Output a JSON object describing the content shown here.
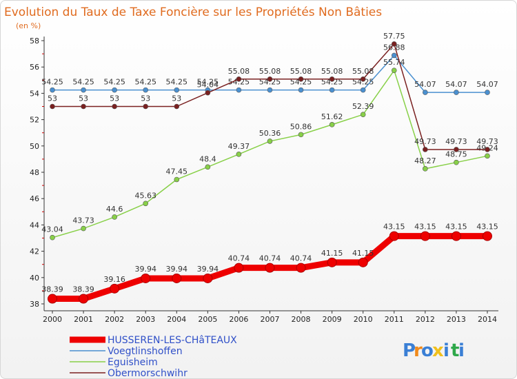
{
  "chart_data": {
    "type": "line",
    "title": "Evolution du Taux de Taxe Foncière sur les Propriétés Non Bâties",
    "ylabel": "(en %)",
    "xlabel": "",
    "ylim": [
      38,
      58
    ],
    "yticks": [
      38,
      40,
      42,
      44,
      46,
      48,
      50,
      52,
      54,
      56,
      58
    ],
    "grid": false,
    "legend_position": "bottom-left",
    "categories": [
      "2000",
      "2001",
      "2002",
      "2003",
      "2004",
      "2005",
      "2006",
      "2007",
      "2008",
      "2009",
      "2010",
      "2011",
      "2012",
      "2013",
      "2014"
    ],
    "series": [
      {
        "name": "HUSSEREN-LES-CHâTEAUX",
        "color": "#ee0000",
        "values": [
          38.39,
          38.39,
          39.16,
          39.94,
          39.94,
          39.94,
          40.74,
          40.74,
          40.74,
          41.15,
          41.15,
          43.15,
          43.15,
          43.15,
          43.15
        ],
        "labels": [
          "38.39",
          "38.39",
          "39.16",
          "39.94",
          "39.94",
          "39.94",
          "40.74",
          "40.74",
          "40.74",
          "41.15",
          "41.15",
          "43.15",
          "43.15",
          "43.15",
          "43.15"
        ]
      },
      {
        "name": "Voegtlinshoffen",
        "color": "#4a90d0",
        "values": [
          54.25,
          54.25,
          54.25,
          54.25,
          54.25,
          54.25,
          54.25,
          54.25,
          54.25,
          54.25,
          54.25,
          56.88,
          54.07,
          54.07,
          54.07
        ],
        "labels": [
          "54.25",
          "54.25",
          "54.25",
          "54.25",
          "54.25",
          "54.25",
          "54.25",
          "54.25",
          "54.25",
          "54.25",
          "54.25",
          "56.88",
          "54.07",
          "54.07",
          "54.07"
        ]
      },
      {
        "name": "Eguisheim",
        "color": "#88d048",
        "values": [
          43.04,
          43.73,
          44.6,
          45.63,
          47.45,
          48.4,
          49.37,
          50.36,
          50.86,
          51.62,
          52.39,
          55.74,
          48.27,
          48.75,
          49.24
        ],
        "labels": [
          "43.04",
          "43.73",
          "44.6",
          "45.63",
          "47.45",
          "48.4",
          "49.37",
          "50.36",
          "50.86",
          "51.62",
          "52.39",
          "55.74",
          "48.27",
          "48.75",
          "49.24"
        ]
      },
      {
        "name": "Obermorschwihr",
        "color": "#7a2020",
        "values": [
          53,
          53,
          53,
          53,
          53,
          54.04,
          55.08,
          55.08,
          55.08,
          55.08,
          55.08,
          57.75,
          49.73,
          49.73,
          49.73
        ],
        "labels": [
          "53",
          "53",
          "53",
          "53",
          "53",
          "54.04",
          "55.08",
          "55.08",
          "55.08",
          "55.08",
          "55.08",
          "57.75",
          "49.73",
          "49.73",
          "49.73"
        ]
      }
    ]
  },
  "logo": {
    "letters": [
      "P",
      "r",
      "o",
      "x",
      "i",
      "t",
      "i"
    ],
    "colors": [
      "#3a7fd5",
      "#f08a1c",
      "#3a7fd5",
      "#f0c01c",
      "#3a7fd5",
      "#2ea84a",
      "#3a7fd5"
    ]
  }
}
